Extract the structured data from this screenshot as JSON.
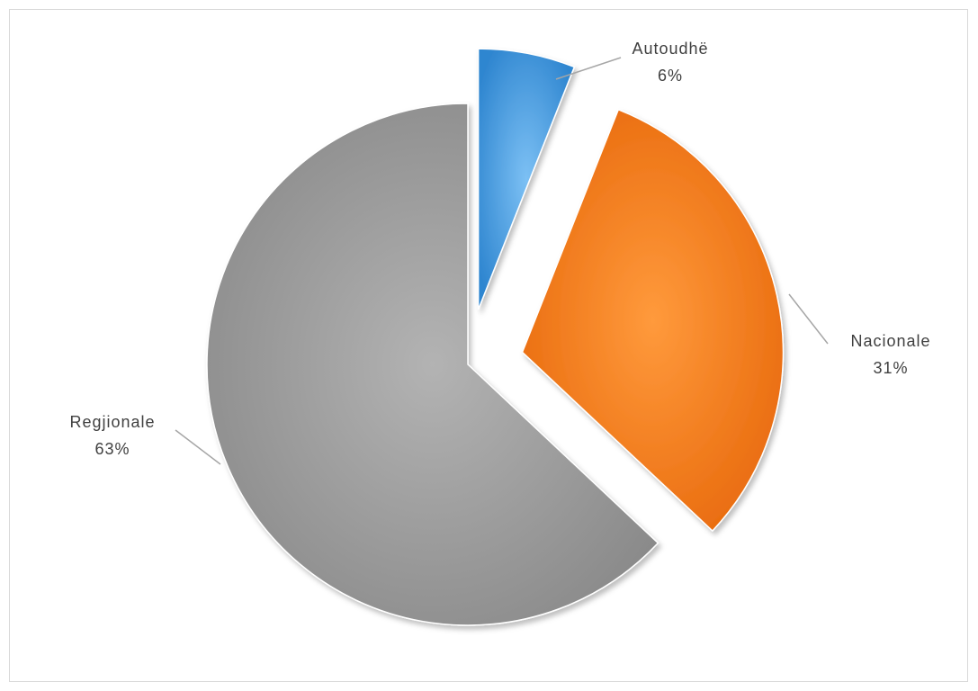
{
  "chart_data": {
    "type": "pie",
    "title": "",
    "slices": [
      {
        "name": "Autoudhë",
        "value": 6,
        "label": "6%",
        "color": "#4a9fe4"
      },
      {
        "name": "Nacionale",
        "value": 31,
        "label": "31%",
        "color": "#f57f1c"
      },
      {
        "name": "Regjionale",
        "value": 63,
        "label": "63%",
        "color": "#a3a3a3"
      }
    ],
    "exploded": [
      "Autoudhë",
      "Nacionale"
    ],
    "legend": "none",
    "data_labels": "category-and-percent-outside-with-leader-lines"
  }
}
